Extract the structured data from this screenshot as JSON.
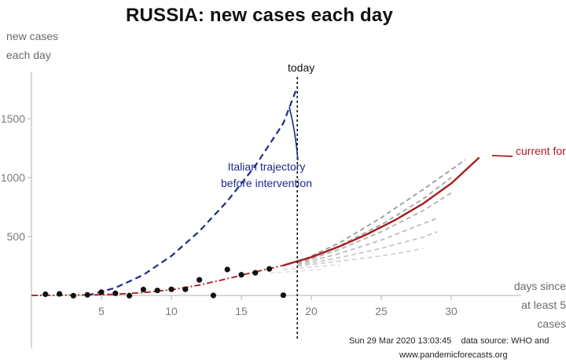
{
  "colors": {
    "forecast": "#a81c1c",
    "italy": "#1c2a8c",
    "scenarios": "#b5b5b5",
    "points": "#111111",
    "axis": "#b0b0b0",
    "today_line": "#111111"
  },
  "footer": {
    "timestamp": "Sun 29 Mar 2020 13:03:45",
    "source": "data source: WHO and",
    "url": "www.pandemicforecasts.org"
  },
  "chart_data": {
    "type": "line",
    "title": "RUSSIA: new cases each day",
    "ylabel": "new cases each day",
    "xlabel": "days since at least 5 cases",
    "xlim": [
      0,
      35
    ],
    "ylim": [
      -450,
      1900
    ],
    "x_ticks": [
      5,
      10,
      15,
      20,
      25,
      30
    ],
    "y_ticks": [
      500,
      1000,
      1500
    ],
    "today_x": 19,
    "annotations": {
      "today": "today",
      "italy": "Italian trajectory before intervention",
      "current": "current forecast"
    },
    "points": [
      {
        "x": 1,
        "y": 10
      },
      {
        "x": 2,
        "y": 13
      },
      {
        "x": 3,
        "y": -2
      },
      {
        "x": 4,
        "y": 5
      },
      {
        "x": 5,
        "y": 28
      },
      {
        "x": 6,
        "y": 18
      },
      {
        "x": 7,
        "y": -2
      },
      {
        "x": 8,
        "y": 50
      },
      {
        "x": 9,
        "y": 42
      },
      {
        "x": 10,
        "y": 52
      },
      {
        "x": 11,
        "y": 52
      },
      {
        "x": 12,
        "y": 132
      },
      {
        "x": 13,
        "y": 0
      },
      {
        "x": 14,
        "y": 220
      },
      {
        "x": 15,
        "y": 175
      },
      {
        "x": 16,
        "y": 192
      },
      {
        "x": 17,
        "y": 225
      },
      {
        "x": 18,
        "y": 2
      }
    ],
    "italy_trajectory": [
      {
        "x": 4,
        "y": 0
      },
      {
        "x": 6,
        "y": 65
      },
      {
        "x": 8,
        "y": 175
      },
      {
        "x": 10,
        "y": 335
      },
      {
        "x": 12,
        "y": 545
      },
      {
        "x": 14,
        "y": 800
      },
      {
        "x": 16,
        "y": 1100
      },
      {
        "x": 18,
        "y": 1460
      },
      {
        "x": 19,
        "y": 1770
      }
    ],
    "current_forecast": [
      {
        "x": 0,
        "y": 0
      },
      {
        "x": 4,
        "y": 4
      },
      {
        "x": 6,
        "y": 10
      },
      {
        "x": 8,
        "y": 24
      },
      {
        "x": 10,
        "y": 48
      },
      {
        "x": 12,
        "y": 88
      },
      {
        "x": 14,
        "y": 142
      },
      {
        "x": 16,
        "y": 200
      },
      {
        "x": 18,
        "y": 255
      },
      {
        "x": 20,
        "y": 325
      },
      {
        "x": 22,
        "y": 415
      },
      {
        "x": 24,
        "y": 520
      },
      {
        "x": 26,
        "y": 640
      },
      {
        "x": 28,
        "y": 780
      },
      {
        "x": 30,
        "y": 950
      },
      {
        "x": 32,
        "y": 1170
      }
    ],
    "scenario_forecasts": [
      [
        {
          "x": 19,
          "y": 280
        },
        {
          "x": 22,
          "y": 445
        },
        {
          "x": 25,
          "y": 660
        },
        {
          "x": 28,
          "y": 900
        },
        {
          "x": 31,
          "y": 1150
        }
      ],
      [
        {
          "x": 19,
          "y": 275
        },
        {
          "x": 22,
          "y": 420
        },
        {
          "x": 25,
          "y": 600
        },
        {
          "x": 28,
          "y": 820
        },
        {
          "x": 30,
          "y": 1000
        }
      ],
      [
        {
          "x": 19,
          "y": 270
        },
        {
          "x": 22,
          "y": 390
        },
        {
          "x": 25,
          "y": 540
        },
        {
          "x": 28,
          "y": 720
        },
        {
          "x": 30,
          "y": 870
        }
      ],
      [
        {
          "x": 19,
          "y": 262
        },
        {
          "x": 22,
          "y": 355
        },
        {
          "x": 25,
          "y": 470
        },
        {
          "x": 28,
          "y": 610
        },
        {
          "x": 29,
          "y": 655
        }
      ],
      [
        {
          "x": 19,
          "y": 255
        },
        {
          "x": 22,
          "y": 320
        },
        {
          "x": 25,
          "y": 400
        },
        {
          "x": 28,
          "y": 495
        },
        {
          "x": 29,
          "y": 540
        }
      ],
      [
        {
          "x": 19,
          "y": 248
        },
        {
          "x": 22,
          "y": 290
        },
        {
          "x": 25,
          "y": 335
        },
        {
          "x": 27,
          "y": 375
        },
        {
          "x": 28,
          "y": 400
        }
      ],
      [
        {
          "x": 18,
          "y": 220
        },
        {
          "x": 20,
          "y": 240
        },
        {
          "x": 22,
          "y": 262
        }
      ],
      [
        {
          "x": 17,
          "y": 190
        },
        {
          "x": 19,
          "y": 205
        },
        {
          "x": 21,
          "y": 222
        }
      ]
    ]
  }
}
